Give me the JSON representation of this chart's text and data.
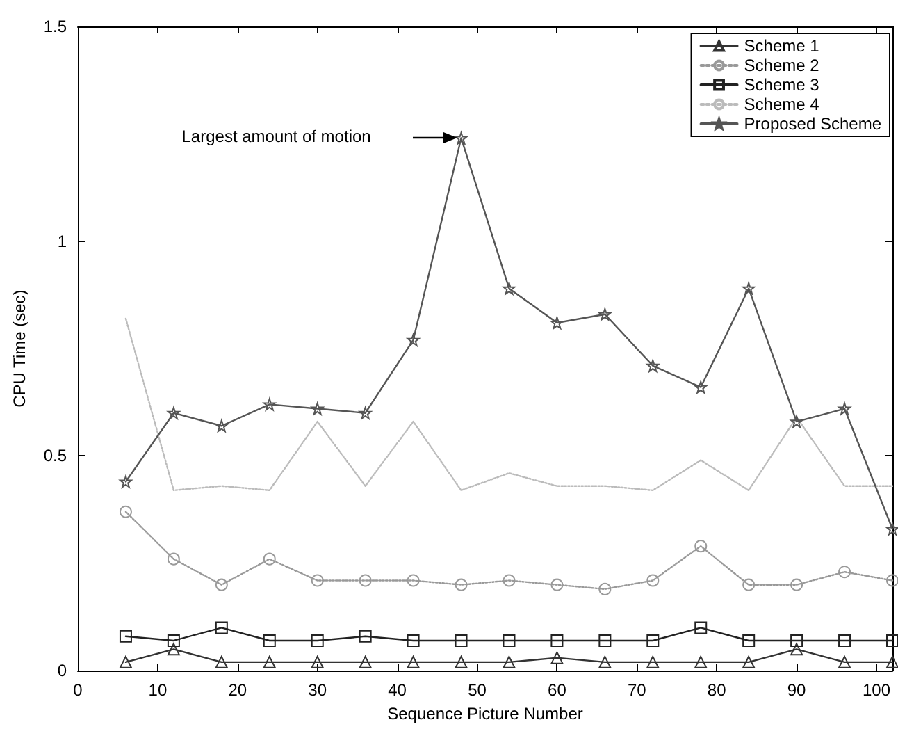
{
  "chart_data": {
    "type": "line",
    "xlabel": "Sequence Picture Number",
    "ylabel": "CPU Time (sec)",
    "x": [
      6,
      12,
      18,
      24,
      30,
      36,
      42,
      48,
      54,
      60,
      66,
      72,
      78,
      84,
      90,
      96,
      102
    ],
    "xlim": [
      0,
      102
    ],
    "xticks": [
      0,
      10,
      20,
      30,
      40,
      50,
      60,
      70,
      80,
      90,
      100
    ],
    "ylim": [
      0,
      1.5
    ],
    "yticks": [
      0,
      0.5,
      1,
      1.5
    ],
    "grid": false,
    "legend": "top right",
    "series": [
      {
        "name": "Scheme 1",
        "color": "#333333",
        "marker": "triangle",
        "line_style": "solid",
        "values": [
          0.02,
          0.05,
          0.02,
          0.02,
          0.02,
          0.02,
          0.02,
          0.02,
          0.02,
          0.03,
          0.02,
          0.02,
          0.02,
          0.02,
          0.05,
          0.02,
          0.02
        ]
      },
      {
        "name": "Scheme 2",
        "color": "#999999",
        "marker": "circle",
        "line_style": "dotted",
        "values": [
          0.37,
          0.26,
          0.2,
          0.26,
          0.21,
          0.21,
          0.21,
          0.2,
          0.21,
          0.2,
          0.19,
          0.21,
          0.29,
          0.2,
          0.2,
          0.23,
          0.21
        ]
      },
      {
        "name": "Scheme 3",
        "color": "#222222",
        "marker": "square",
        "line_style": "solid",
        "values": [
          0.08,
          0.07,
          0.1,
          0.07,
          0.07,
          0.08,
          0.07,
          0.07,
          0.07,
          0.07,
          0.07,
          0.07,
          0.1,
          0.07,
          0.07,
          0.07,
          0.07
        ]
      },
      {
        "name": "Scheme 4",
        "color": "#bbbbbb",
        "marker": "none",
        "line_style": "dotted",
        "values": [
          0.82,
          0.42,
          0.43,
          0.42,
          0.58,
          0.43,
          0.58,
          0.42,
          0.46,
          0.43,
          0.43,
          0.42,
          0.49,
          0.42,
          0.59,
          0.43,
          0.43
        ]
      },
      {
        "name": "Proposed Scheme",
        "color": "#555555",
        "marker": "star",
        "line_style": "solid",
        "values": [
          0.44,
          0.6,
          0.57,
          0.62,
          0.61,
          0.6,
          0.77,
          1.24,
          0.89,
          0.81,
          0.83,
          0.71,
          0.66,
          0.89,
          0.58,
          0.61,
          0.33
        ]
      }
    ],
    "annotations": [
      "Largest amount of motion"
    ]
  }
}
